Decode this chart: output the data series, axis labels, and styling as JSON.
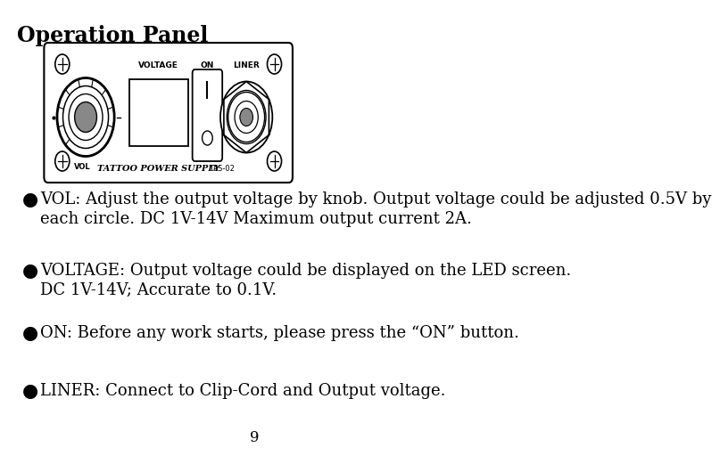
{
  "title": "Operation Panel",
  "title_fontsize": 17,
  "body_fontsize": 13,
  "bullet_char": "●",
  "bullets": [
    {
      "lines": [
        "VOL: Adjust the output voltage by knob. Output voltage could be adjusted 0.5V by",
        "each circle. DC 1V-14V Maximum output current 2A."
      ]
    },
    {
      "lines": [
        "VOLTAGE: Output voltage could be displayed on the LED screen.",
        "DC 1V-14V; Accurate to 0.1V."
      ]
    },
    {
      "lines": [
        "ON: Before any work starts, please press the “ON” button."
      ]
    },
    {
      "lines": [
        "LINER: Connect to Clip-Cord and Output voltage."
      ]
    }
  ],
  "page_number": "9",
  "bg_color": "#ffffff",
  "text_color": "#000000",
  "panel_label_voltage": "VOLTAGE",
  "panel_label_on": "ON",
  "panel_label_liner": "LINER",
  "panel_label_vol": "VOL",
  "panel_label_brand": "TATTOO POWER SUPPLY",
  "panel_label_model": "TPS-02"
}
